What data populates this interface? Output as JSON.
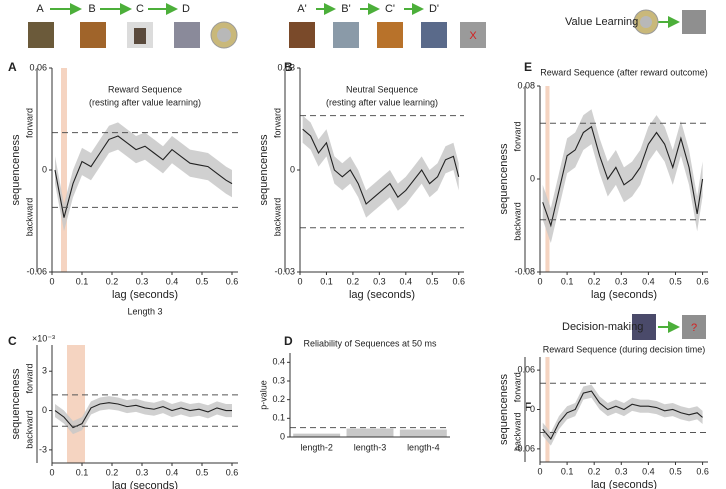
{
  "illustrations": {
    "reward_items": [
      "A",
      "B",
      "C",
      "D"
    ],
    "neutral_items": [
      "A'",
      "B'",
      "C'",
      "D'"
    ],
    "value_learning": "Value Learning",
    "decision_making": "Decision-making",
    "no_reward_mark": "X",
    "unknown_mark": "?"
  },
  "chart_data": [
    {
      "type": "line",
      "panel": "A",
      "title": "Reward Sequence",
      "subtitle": "(resting after value learning)",
      "xlabel": "lag (seconds)",
      "ylabel": "sequenceness",
      "forward_label": "forward",
      "backward_label": "backward",
      "x": [
        0.01,
        0.04,
        0.07,
        0.1,
        0.13,
        0.16,
        0.19,
        0.22,
        0.25,
        0.28,
        0.31,
        0.34,
        0.37,
        0.4,
        0.43,
        0.46,
        0.49,
        0.52,
        0.55,
        0.58,
        0.6
      ],
      "series": [
        {
          "color": "#222222",
          "band_color": "#c8c8c8",
          "error": 0.008,
          "values": [
            0.0,
            -0.028,
            -0.008,
            0.005,
            0.002,
            0.01,
            0.018,
            0.02,
            0.016,
            0.012,
            0.014,
            0.01,
            0.006,
            0.012,
            0.008,
            0.004,
            0.003,
            0.002,
            -0.002,
            -0.006,
            -0.008
          ]
        }
      ],
      "thresholds": [
        0.022,
        -0.022
      ],
      "highlight": [
        0.03,
        0.05
      ],
      "highlight_color": "#f3cdb6",
      "xlim": [
        0,
        0.62
      ],
      "ylim": [
        -0.06,
        0.06
      ],
      "xticks": [
        0,
        0.1,
        0.2,
        0.3,
        0.4,
        0.5,
        0.6
      ],
      "yticks": [
        0.06,
        0,
        -0.06
      ]
    },
    {
      "type": "line",
      "panel": "B",
      "title": "Neutral Sequence",
      "subtitle": "(resting after value learning)",
      "xlabel": "lag (seconds)",
      "ylabel": "sequenceness",
      "forward_label": "forward",
      "backward_label": "backward",
      "x": [
        0.01,
        0.04,
        0.07,
        0.1,
        0.13,
        0.16,
        0.19,
        0.22,
        0.25,
        0.28,
        0.31,
        0.34,
        0.37,
        0.4,
        0.43,
        0.46,
        0.49,
        0.52,
        0.55,
        0.58,
        0.6
      ],
      "series": [
        {
          "color": "#222222",
          "band_color": "#c8c8c8",
          "error": 0.004,
          "values": [
            0.012,
            0.01,
            0.005,
            0.008,
            0.0,
            -0.002,
            0.0,
            -0.004,
            -0.01,
            -0.008,
            -0.006,
            -0.004,
            -0.008,
            -0.006,
            -0.003,
            0.0,
            -0.004,
            -0.002,
            0.003,
            0.004,
            -0.002
          ]
        }
      ],
      "thresholds": [
        0.016,
        -0.017
      ],
      "xlim": [
        0,
        0.62
      ],
      "ylim": [
        -0.03,
        0.03
      ],
      "xticks": [
        0,
        0.1,
        0.2,
        0.3,
        0.4,
        0.5,
        0.6
      ],
      "yticks": [
        0.03,
        0,
        -0.03
      ]
    },
    {
      "type": "line",
      "panel": "E",
      "title": "Reward Sequence (after reward outcome)",
      "xlabel": "lag (seconds)",
      "ylabel": "sequenceness",
      "forward_label": "forward",
      "backward_label": "backward",
      "x": [
        0.01,
        0.04,
        0.07,
        0.1,
        0.13,
        0.16,
        0.19,
        0.22,
        0.25,
        0.28,
        0.31,
        0.34,
        0.37,
        0.4,
        0.43,
        0.46,
        0.49,
        0.52,
        0.55,
        0.58,
        0.6
      ],
      "series": [
        {
          "color": "#222222",
          "band_color": "#c8c8c8",
          "error": 0.015,
          "values": [
            -0.02,
            -0.04,
            -0.01,
            0.02,
            0.025,
            0.04,
            0.045,
            0.02,
            0.0,
            0.01,
            -0.005,
            0.0,
            0.01,
            0.03,
            0.04,
            0.03,
            0.01,
            0.035,
            0.01,
            -0.03,
            0.0
          ]
        }
      ],
      "thresholds": [
        0.048,
        -0.035
      ],
      "highlight": [
        0.02,
        0.035
      ],
      "highlight_color": "#f3cdb6",
      "xlim": [
        0,
        0.62
      ],
      "ylim": [
        -0.08,
        0.08
      ],
      "xticks": [
        0,
        0.1,
        0.2,
        0.3,
        0.4,
        0.5,
        0.6
      ],
      "yticks": [
        0.08,
        0,
        -0.08
      ]
    },
    {
      "type": "line",
      "panel": "C",
      "title": "Length 3",
      "multiplier": "×10⁻³",
      "xlabel": "lag (seconds)",
      "ylabel": "sequenceness",
      "forward_label": "forward",
      "backward_label": "backward",
      "x": [
        0.01,
        0.04,
        0.07,
        0.1,
        0.13,
        0.16,
        0.19,
        0.22,
        0.25,
        0.28,
        0.31,
        0.34,
        0.37,
        0.4,
        0.43,
        0.46,
        0.49,
        0.52,
        0.55,
        0.58,
        0.6
      ],
      "series": [
        {
          "color": "#222222",
          "band_color": "#c8c8c8",
          "error": 0.5,
          "values": [
            0,
            -0.5,
            -1.3,
            -1.0,
            0.2,
            0.5,
            0.6,
            0.5,
            0.3,
            0.4,
            0.2,
            0.1,
            0.3,
            0,
            0.2,
            0,
            0.1,
            -0.1,
            0.2,
            0,
            0
          ]
        }
      ],
      "thresholds": [
        1.2,
        -1.2
      ],
      "highlight": [
        0.05,
        0.11
      ],
      "highlight_color": "#f3cdb6",
      "xlim": [
        0,
        0.62
      ],
      "ylim": [
        -4,
        5
      ],
      "xticks": [
        0,
        0.1,
        0.2,
        0.3,
        0.4,
        0.5,
        0.6
      ],
      "yticks": [
        3,
        0,
        -3
      ]
    },
    {
      "type": "bar",
      "panel": "D",
      "title": "Reliability of Sequences at 50 ms",
      "ylabel": "p-value",
      "categories": [
        "length-2",
        "length-3",
        "length-4"
      ],
      "values": [
        0.018,
        0.045,
        0.04
      ],
      "color": "#c8c8c8",
      "thresholds": [
        0.05
      ],
      "ylim": [
        0,
        0.45
      ],
      "yticks": [
        0,
        0.1,
        0.2,
        0.3,
        0.4
      ]
    },
    {
      "type": "line",
      "panel": "F",
      "title": "Reward Sequence (during decision time)",
      "xlabel": "lag (seconds)",
      "ylabel": "sequenceness",
      "forward_label": "forward",
      "backward_label": "backward",
      "x": [
        0.01,
        0.04,
        0.07,
        0.1,
        0.13,
        0.16,
        0.19,
        0.22,
        0.25,
        0.28,
        0.31,
        0.34,
        0.37,
        0.4,
        0.43,
        0.46,
        0.49,
        0.52,
        0.55,
        0.58,
        0.6
      ],
      "series": [
        {
          "color": "#222222",
          "band_color": "#c8c8c8",
          "error": 0.01,
          "values": [
            -0.03,
            -0.045,
            -0.02,
            -0.005,
            0.0,
            0.025,
            0.028,
            0.01,
            0.0,
            0.005,
            0.0,
            0.008,
            0.005,
            0.005,
            0.003,
            -0.002,
            0.0,
            -0.005,
            -0.008,
            -0.005,
            -0.012
          ]
        }
      ],
      "thresholds": [
        0.04,
        -0.035
      ],
      "highlight": [
        0.02,
        0.035
      ],
      "highlight_color": "#f3cdb6",
      "xlim": [
        0,
        0.62
      ],
      "ylim": [
        -0.08,
        0.08
      ],
      "xticks": [
        0,
        0.1,
        0.2,
        0.3,
        0.4,
        0.5,
        0.6
      ],
      "yticks": [
        0.06,
        0,
        -0.06
      ]
    }
  ]
}
